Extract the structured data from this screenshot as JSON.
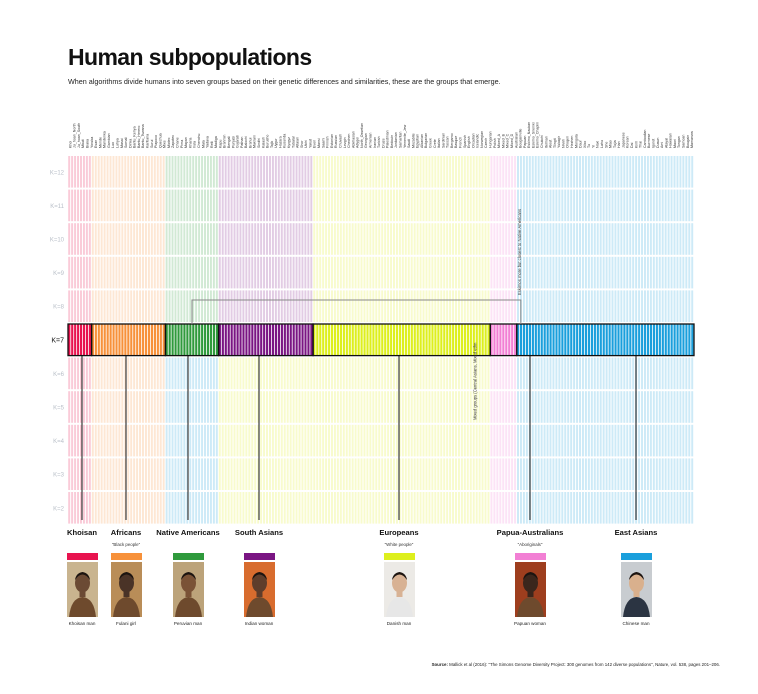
{
  "header": {
    "title": "Human subpopulations",
    "subtitle": "When algorithms divide humans into seven groups based on their genetic differences and similarities, these are the groups that emerge."
  },
  "annotations": {
    "native_note": "Eskimos more but closest to Native Americans",
    "mixed_note": "Mixed groups (Central Asians, Mixed ethn"
  },
  "groups": [
    {
      "name": "Khoisan",
      "nickname": "",
      "color": "#e8134f",
      "caption": "Khoisan man"
    },
    {
      "name": "Africans",
      "nickname": "\"Black people\"",
      "color": "#f7913a",
      "caption": "Fulani girl"
    },
    {
      "name": "Native Americans",
      "nickname": "",
      "color": "#2f9a3c",
      "caption": "Peruvian man"
    },
    {
      "name": "South Asians",
      "nickname": "",
      "color": "#7a1583",
      "caption": "Indian woman"
    },
    {
      "name": "Europeans",
      "nickname": "\"White people\"",
      "color": "#ddef1d",
      "caption": "Danish man"
    },
    {
      "name": "Papua-Australians",
      "nickname": "\"Aboriginals\"",
      "color": "#f27fd4",
      "caption": "Papuan woman"
    },
    {
      "name": "East Asians",
      "nickname": "",
      "color": "#1a9fdc",
      "caption": "Chinese man"
    }
  ],
  "source": {
    "label": "Source:",
    "text": "Mallick et al (2016): \"The Simons Genome Diversity Project: 300 genomes from 142 diverse populations\", Nature, vol. 538, pages 201–206."
  },
  "chart_data": {
    "type": "bar",
    "description_k_levels": [
      "K=12",
      "K=11",
      "K=10",
      "K=9",
      "K=8",
      "K=7",
      "K=6",
      "K=5",
      "K=4",
      "K=3",
      "K=2"
    ],
    "highlighted_k": "K=7",
    "highlight_segments": [
      {
        "name": "Khoisan",
        "count": 8
      },
      {
        "name": "Africans",
        "count": 25
      },
      {
        "name": "Native Americans",
        "count": 18
      },
      {
        "name": "South Asians",
        "count": 32
      },
      {
        "name": "Europeans",
        "count": 60
      },
      {
        "name": "Papua-Australians",
        "count": 9
      },
      {
        "name": "East Asians",
        "count": 60
      }
    ],
    "population_labels": [
      "Khoi",
      "Ju_hoan_North",
      "Ju_hoan_South",
      "Mbuti",
      "Biaka",
      "Yoruba",
      "Esan",
      "Mende",
      "Mandenka",
      "Gambian",
      "Luo",
      "Luhya",
      "Masai",
      "Somali",
      "Dinka",
      "Bantu_Kenya",
      "Bantu_Herero",
      "Bantu_Tswana",
      "Karitiana",
      "Surui",
      "Piapoco",
      "Quechua",
      "Mixe",
      "Mixtec",
      "Zapotec",
      "Chane",
      "Pima",
      "Mayan",
      "Kharia",
      "Irula",
      "Chenchu",
      "Mala",
      "Yadava",
      "Relli",
      "Madiga",
      "Kapu",
      "Brahmin",
      "Bengali",
      "Punjabi",
      "Gujarati",
      "Pathan",
      "Balochi",
      "Brahui",
      "Makrani",
      "Sindhi",
      "Kalash",
      "Burusho",
      "Tajik",
      "Uygur",
      "Hazara",
      "Kusunda",
      "Kyrgyz",
      "Tubalar",
      "Altaian",
      "Shor",
      "Ulchi",
      "Yakut",
      "Even",
      "Mansi",
      "Saami",
      "Finnish",
      "Estonian",
      "Russian",
      "Chuvash",
      "Lezgin",
      "Chechen",
      "Abkhasian",
      "Adygei",
      "North_Ossetian",
      "Georgian",
      "Armenian",
      "Iranian",
      "Turkish",
      "Druze",
      "Palestinian",
      "Bedouin",
      "Jordanian",
      "Samaritan",
      "Yemenite_Jew",
      "Saudi",
      "Mozabite",
      "Egyptian",
      "Albanian",
      "Bulgarian",
      "Greek",
      "Crete",
      "Italian",
      "Sardinian",
      "Tuscan",
      "Bergamo",
      "Basque",
      "French",
      "Spanish",
      "English",
      "Orcadian",
      "Icelandic",
      "Norwegian",
      "Czech",
      "Hungarian",
      "Polish",
      "Mixed_A",
      "Mixed_B",
      "Mixed_C",
      "Mixed_D",
      "Australian",
      "Bougainville",
      "Papuan",
      "Eskimo_Naukan",
      "Eskimo_Sireniki",
      "Eskimo_Chaplin",
      "Chukchi",
      "Itelman",
      "Aleut",
      "Tlingit",
      "Yukagir",
      "Nivkh",
      "Oroqen",
      "Hezhen",
      "Mongola",
      "Daur",
      "Xibo",
      "Tu",
      "Yi",
      "Naxi",
      "Lahu",
      "She",
      "Miao",
      "Tujia",
      "Han",
      "Japanese",
      "Korean",
      "Dai",
      "Kinh",
      "Thai",
      "Cambodian",
      "Burmese",
      "Igorot",
      "Dusun",
      "Ami",
      "Atayal",
      "Hawaiian",
      "Maori",
      "Tongan",
      "Samoan",
      "Bougain",
      "Mamanwa"
    ]
  }
}
